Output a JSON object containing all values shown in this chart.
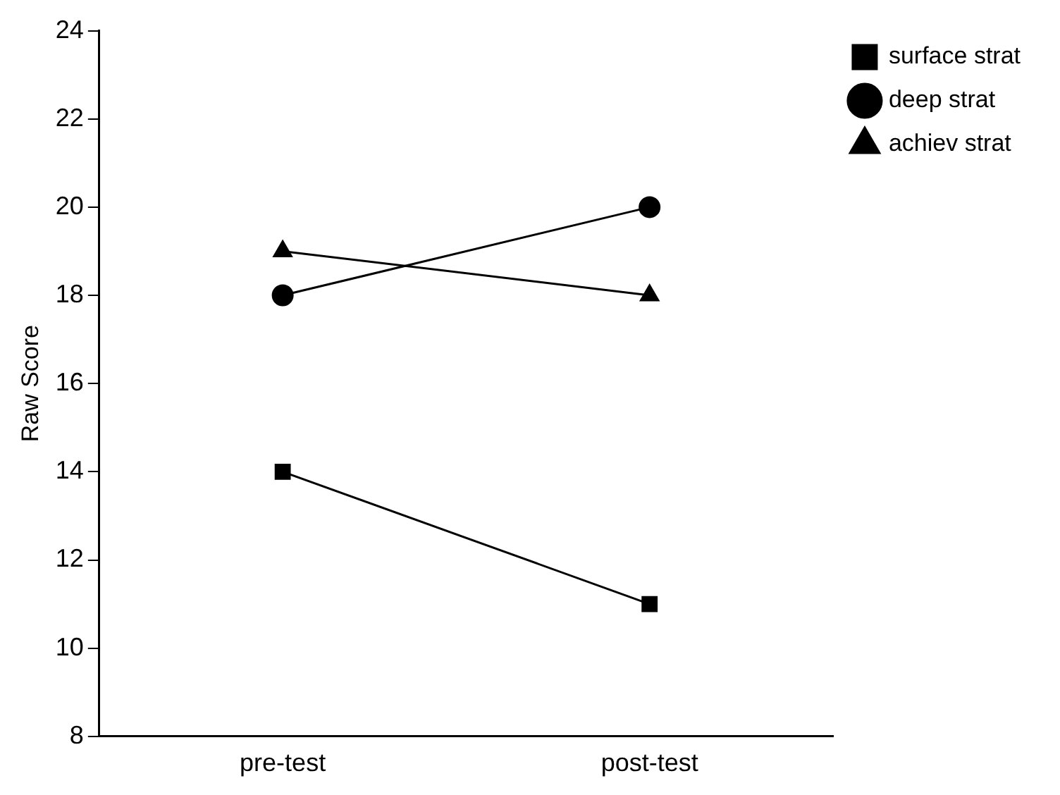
{
  "chart_data": {
    "type": "line",
    "ylabel": "Raw Score",
    "categories": [
      "pre-test",
      "post-test"
    ],
    "series": [
      {
        "name": "surface strat",
        "color": "#000000",
        "marker": "square",
        "values": [
          14,
          11
        ]
      },
      {
        "name": "deep strat",
        "color": "#000000",
        "marker": "circle",
        "values": [
          18,
          20
        ]
      },
      {
        "name": "achiev strat",
        "color": "#000000",
        "marker": "triangle",
        "values": [
          19,
          18
        ]
      }
    ],
    "ylim": [
      8,
      24
    ],
    "yticks": [
      8,
      10,
      12,
      14,
      16,
      18,
      20,
      22,
      24
    ],
    "grid": false,
    "legend": "top right",
    "line_style": "solid"
  }
}
